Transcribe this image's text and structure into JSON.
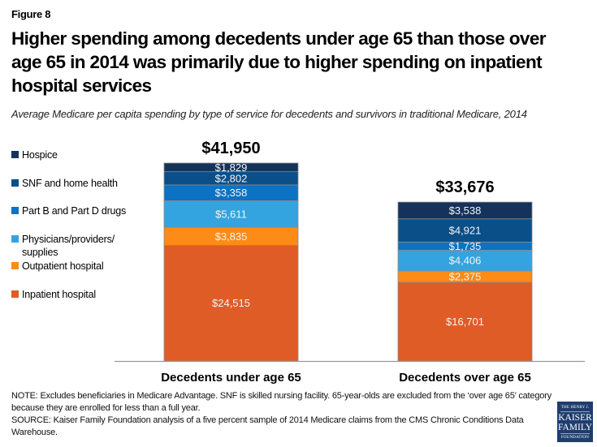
{
  "figure_label": "Figure 8",
  "title": "Higher spending among decedents under age 65 than those over age 65 in 2014 was primarily due to higher spending on inpatient hospital services",
  "subtitle": "Average Medicare per capita spending by type of service for decedents and survivors in traditional Medicare, 2014",
  "notes": {
    "note": "NOTE: Excludes beneficiaries in Medicare Advantage. SNF is skilled nursing facility. 65-year-olds are excluded from the ‘over age 65’ category because they are enrolled for less than a full year.",
    "source": "SOURCE: Kaiser Family Foundation analysis of a five percent sample of 2014 Medicare claims from the CMS Chronic Conditions Data Warehouse."
  },
  "logo": {
    "line1": "THE HENRY J.",
    "line2": "KAISER",
    "line3": "FAMILY",
    "line4": "FOUNDATION"
  },
  "chart_data": {
    "type": "bar",
    "stacked": true,
    "title": "Higher spending among decedents under age 65 than those over age 65 in 2014 was primarily due to higher spending on inpatient hospital services",
    "xlabel": "",
    "ylabel": "",
    "legend_position": "left",
    "grid": false,
    "categories": [
      "Decedents under age 65",
      "Decedents over age 65"
    ],
    "totals": [
      41950,
      33676
    ],
    "total_labels": [
      "$41,950",
      "$33,676"
    ],
    "series": [
      {
        "name": "Inpatient hospital",
        "color": "#df5c27",
        "values": [
          24515,
          16701
        ],
        "labels": [
          "$24,515",
          "$16,701"
        ]
      },
      {
        "name": "Outpatient hospital",
        "color": "#fc8b17",
        "values": [
          3835,
          2375
        ],
        "labels": [
          "$3,835",
          "$2,375"
        ]
      },
      {
        "name": "Physicians/providers/ supplies",
        "color": "#33a4e0",
        "values": [
          5611,
          4406
        ],
        "labels": [
          "$5,611",
          "$4,406"
        ]
      },
      {
        "name": "Part B and Part D drugs",
        "color": "#0b72c4",
        "values": [
          3358,
          1735
        ],
        "labels": [
          "$3,358",
          "$1,735"
        ]
      },
      {
        "name": "SNF and home health",
        "color": "#0a4f88",
        "values": [
          2802,
          4921
        ],
        "labels": [
          "$2,802",
          "$4,921"
        ]
      },
      {
        "name": "Hospice",
        "color": "#15325a",
        "values": [
          1829,
          3538
        ],
        "labels": [
          "$1,829",
          "$3,538"
        ]
      }
    ],
    "legend_order": [
      "Hospice",
      "SNF and home health",
      "Part B and Part D drugs",
      "Physicians/providers/ supplies",
      "Outpatient hospital",
      "Inpatient hospital"
    ],
    "ylim": [
      0,
      41950
    ]
  }
}
